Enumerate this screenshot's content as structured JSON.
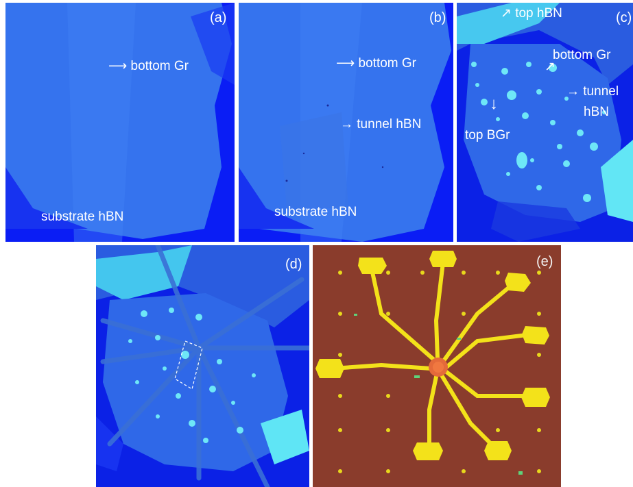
{
  "panels": {
    "a": {
      "label": "(a)",
      "annotations": {
        "bottom_gr": "bottom Gr",
        "substrate_hbn": "substrate hBN"
      }
    },
    "b": {
      "label": "(b)",
      "annotations": {
        "bottom_gr": "bottom Gr",
        "tunnel_hbn": "tunnel hBN",
        "substrate_hbn": "substrate hBN"
      }
    },
    "c": {
      "label": "(c)",
      "annotations": {
        "top_hbn": "top hBN",
        "bottom_gr": "bottom Gr",
        "tunnel_line1": "tunnel",
        "tunnel_line2": "hBN",
        "top_bgr": "top BGr"
      }
    },
    "d": {
      "label": "(d)"
    },
    "e": {
      "label": "(e)"
    }
  },
  "colors": {
    "substrate_blue": "#0a1df5",
    "flake_blue": "#3a78f0",
    "bright_cyan": "#3de0f0",
    "chip_background": "#8a3c2c",
    "gold_contacts": "#f3e21a"
  }
}
